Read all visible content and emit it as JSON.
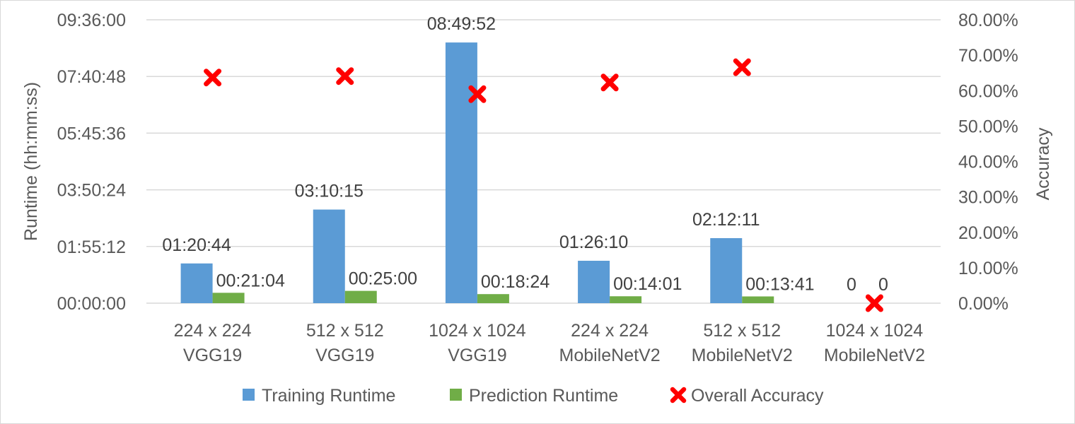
{
  "chart_data": {
    "type": "bar",
    "categories": [
      [
        "224 x 224",
        "VGG19"
      ],
      [
        "512 x 512",
        "VGG19"
      ],
      [
        "1024 x 1024",
        "VGG19"
      ],
      [
        "224 x 224",
        "MobileNetV2"
      ],
      [
        "512 x 512",
        "MobileNetV2"
      ],
      [
        "1024 x 1024",
        "MobileNetV2"
      ]
    ],
    "series": [
      {
        "name": "Training Runtime",
        "kind": "bar",
        "axis": "left",
        "color": "#5b9bd5",
        "values_seconds": [
          4844,
          11415,
          31792,
          5170,
          7931,
          0
        ],
        "labels": [
          "01:20:44",
          "03:10:15",
          "08:49:52",
          "01:26:10",
          "02:12:11",
          "0"
        ]
      },
      {
        "name": "Prediction Runtime",
        "kind": "bar",
        "axis": "left",
        "color": "#70ad47",
        "values_seconds": [
          1264,
          1500,
          1104,
          841,
          821,
          0
        ],
        "labels": [
          "00:21:04",
          "00:25:00",
          "00:18:24",
          "00:14:01",
          "00:13:41",
          "0"
        ]
      },
      {
        "name": "Overall Accuracy",
        "kind": "marker",
        "axis": "right",
        "color": "#ff0000",
        "values": [
          0.637,
          0.641,
          0.59,
          0.623,
          0.666,
          0.0
        ]
      }
    ],
    "y_left": {
      "label": "Runtime (hh:mm:ss)",
      "ticks": [
        "00:00:00",
        "01:55:12",
        "03:50:24",
        "05:45:36",
        "07:40:48",
        "09:36:00"
      ],
      "range_seconds": [
        0,
        34560
      ]
    },
    "y_right": {
      "label": "Accuracy",
      "ticks": [
        "0.00%",
        "10.00%",
        "20.00%",
        "30.00%",
        "40.00%",
        "50.00%",
        "60.00%",
        "70.00%",
        "80.00%"
      ],
      "range": [
        0,
        0.8
      ]
    },
    "grid": true,
    "legend_position": "bottom"
  }
}
